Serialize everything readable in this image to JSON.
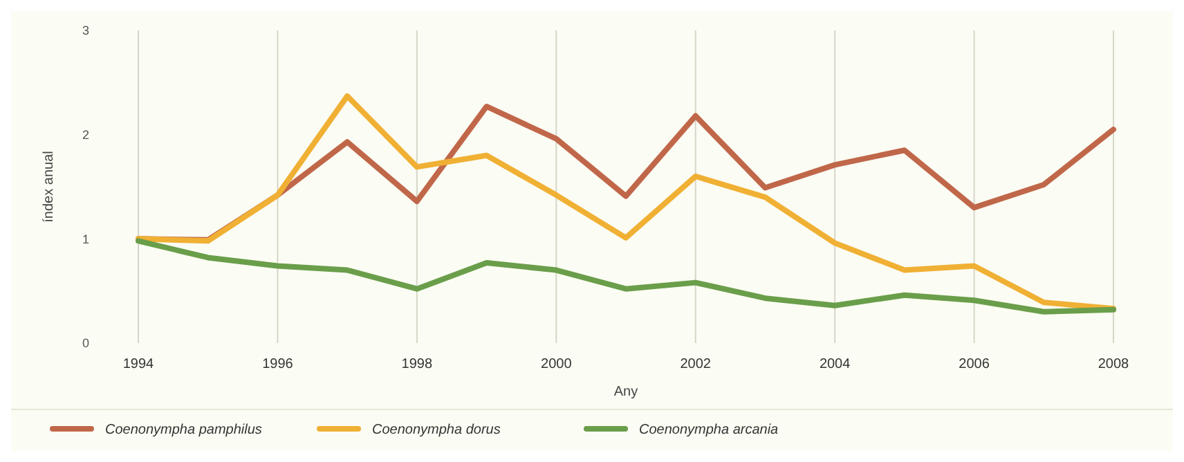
{
  "chart_data": {
    "type": "line",
    "xlabel": "Any",
    "ylabel": "índex anual",
    "x": [
      1994,
      1995,
      1996,
      1997,
      1998,
      1999,
      2000,
      2001,
      2002,
      2003,
      2004,
      2005,
      2006,
      2007,
      2008
    ],
    "xlim": [
      1994,
      2008
    ],
    "xticks": [
      1994,
      1996,
      1998,
      2000,
      2002,
      2004,
      2006,
      2008
    ],
    "ylim": [
      0,
      3
    ],
    "yticks": [
      0,
      1,
      2,
      3
    ],
    "grid": "x",
    "legend": "bottom",
    "marker": "none",
    "line_style": "solid",
    "series": [
      {
        "name": "Coenonympha pamphilus",
        "color": "#c0674a",
        "values": [
          1.0,
          0.99,
          1.42,
          1.93,
          1.36,
          2.27,
          1.96,
          1.41,
          2.18,
          1.49,
          1.71,
          1.85,
          1.3,
          1.52,
          2.05
        ]
      },
      {
        "name": "Coenonympha dorus",
        "color": "#f0b034",
        "values": [
          1.0,
          0.98,
          1.42,
          2.37,
          1.69,
          1.8,
          1.42,
          1.01,
          1.6,
          1.4,
          0.96,
          0.7,
          0.74,
          0.39,
          0.33
        ]
      },
      {
        "name": "Coenonympha arcania",
        "color": "#6a9e4a",
        "values": [
          0.98,
          0.82,
          0.74,
          0.7,
          0.52,
          0.77,
          0.7,
          0.52,
          0.58,
          0.43,
          0.36,
          0.46,
          0.41,
          0.3,
          0.32
        ]
      }
    ]
  }
}
